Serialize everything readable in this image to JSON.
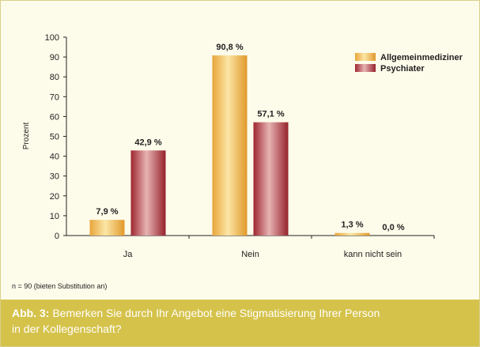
{
  "chart_data": {
    "type": "bar",
    "categories": [
      "Ja",
      "Nein",
      "kann nicht sein"
    ],
    "series": [
      {
        "name": "Allgemeinmediziner",
        "values": [
          7.9,
          90.8,
          1.3
        ],
        "labels": [
          "7,9 %",
          "90,8 %",
          "1,3 %"
        ]
      },
      {
        "name": "Psychiater",
        "values": [
          42.9,
          57.1,
          0.0
        ],
        "labels": [
          "42,9 %",
          "57,1 %",
          "0,0 %"
        ]
      }
    ],
    "ylabel": "Prozent",
    "ylim": [
      0,
      100
    ],
    "yticks": [
      0,
      10,
      20,
      30,
      40,
      50,
      60,
      70,
      80,
      90,
      100
    ],
    "legend_position": "top-right",
    "colors": {
      "Allgemeinmediziner": "#e8a83a",
      "Psychiater": "#a82c35"
    }
  },
  "note": "n = 90 (bieten Substitution an)",
  "caption": {
    "label": "Abb. 3:",
    "line1": "Bemerken Sie durch Ihr Angebot eine Stigmatisierung Ihrer Person",
    "line2": "in der Kollegenschaft?"
  },
  "frame": {
    "background": "#fdfbea",
    "caption_background": "#d5c24a"
  }
}
